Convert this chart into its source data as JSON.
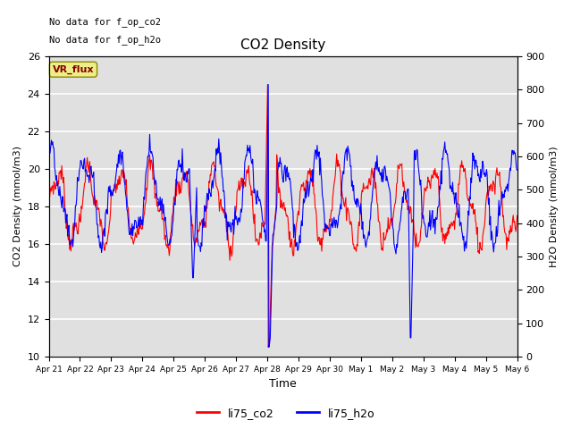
{
  "title": "CO2 Density",
  "xlabel": "Time",
  "ylabel_left": "CO2 Density (mmol/m3)",
  "ylabel_right": "H2O Density (mmol/m3)",
  "top_text_line1": "No data for f_op_co2",
  "top_text_line2": "No data for f_op_h2o",
  "box_label": "VR_flux",
  "legend_labels": [
    "li75_co2",
    "li75_h2o"
  ],
  "color_co2": "#ff0000",
  "color_h2o": "#0000ff",
  "ylim_left": [
    10,
    26
  ],
  "ylim_right": [
    0,
    900
  ],
  "background_color": "#e0e0e0",
  "figure_background": "#ffffff",
  "grid_color": "#ffffff",
  "x_tick_labels": [
    "Apr 21",
    "Apr 22",
    "Apr 23",
    "Apr 24",
    "Apr 25",
    "Apr 26",
    "Apr 27",
    "Apr 28",
    "Apr 29",
    "Apr 30",
    "May 1",
    "May 2",
    "May 3",
    "May 4",
    "May 5",
    "May 6"
  ],
  "yticks_left": [
    10,
    12,
    14,
    16,
    18,
    20,
    22,
    24,
    26
  ],
  "yticks_right": [
    0,
    100,
    200,
    300,
    400,
    500,
    600,
    700,
    800,
    900
  ]
}
